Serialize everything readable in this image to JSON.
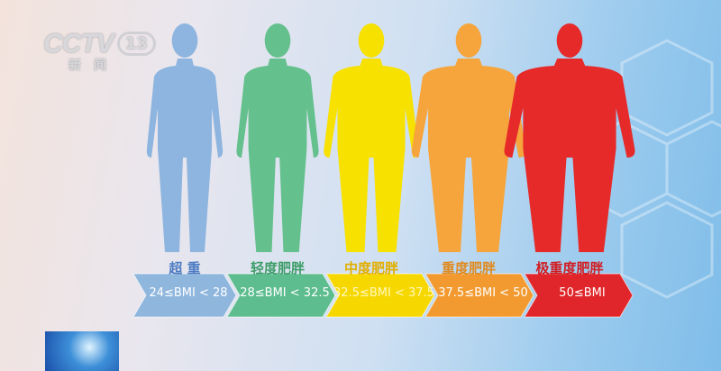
{
  "logo": {
    "channel": "CCTV",
    "number": "13",
    "subtitle": "新闻"
  },
  "categories": [
    {
      "label": "超 重",
      "range": "24≤BMI < 28",
      "body_color": "#8db5df",
      "band_color": "#8fb6dd",
      "label_color": "#4c7cc2",
      "fatness": 1.0
    },
    {
      "label": "轻度肥胖",
      "range": "28≤BMI < 32.5",
      "body_color": "#64c08c",
      "band_color": "#5dbd8f",
      "label_color": "#3f9e6a",
      "fatness": 1.08
    },
    {
      "label": "中度肥胖",
      "range": "32.5≤BMI < 37.5",
      "body_color": "#f7e100",
      "band_color": "#f6d800",
      "label_color": "#e2ae00",
      "fatness": 1.25
    },
    {
      "label": "重度肥胖",
      "range": "37.5≤BMI < 50",
      "body_color": "#f6a53c",
      "band_color": "#f29a30",
      "label_color": "#e08a20",
      "fatness": 1.5
    },
    {
      "label": "极重度肥胖",
      "range": "50≤BMI",
      "body_color": "#e62a2a",
      "band_color": "#e0262a",
      "label_color": "#d11d22",
      "fatness": 1.72
    }
  ]
}
